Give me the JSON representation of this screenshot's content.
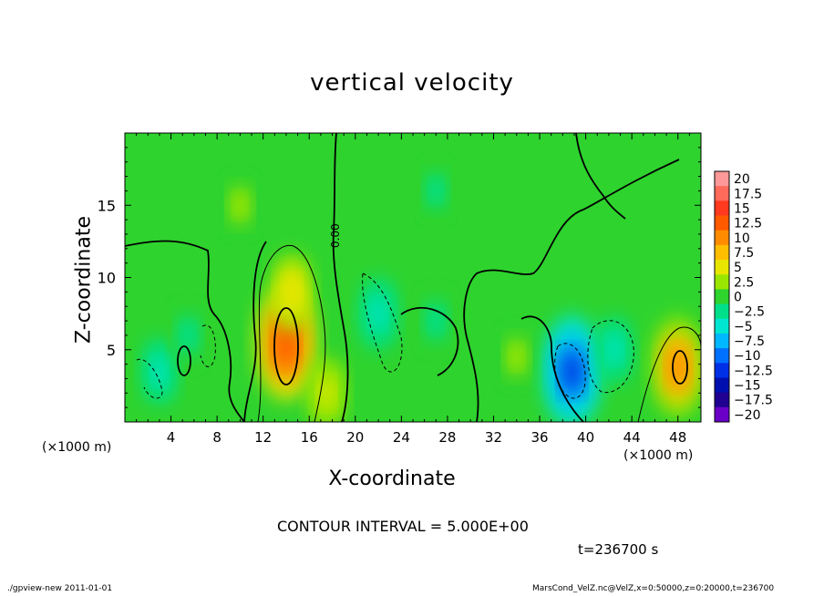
{
  "figure": {
    "title": "vertical velocity",
    "contour_info": "CONTOUR INTERVAL = 5.000E+00",
    "time_label": "t=236700 s",
    "footer_left": "./gpview-new  2011-01-01",
    "footer_right": "MarsCond_VelZ.nc@VelZ,x=0:50000,z=0:20000,t=236700",
    "x_unit_left": "(×1000 m)",
    "x_unit_right": "(×1000 m)",
    "zero_contour_label": "0.00"
  },
  "chart_data": {
    "type": "heatmap",
    "title": "vertical velocity",
    "xlabel": "X-coordinate",
    "ylabel": "Z-coordinate",
    "x_unit": "(×1000 m)",
    "xlim": [
      0,
      50
    ],
    "ylim": [
      0,
      20
    ],
    "x_ticks": [
      4,
      8,
      12,
      16,
      20,
      24,
      28,
      32,
      36,
      40,
      44,
      48
    ],
    "y_ticks": [
      5,
      10,
      15
    ],
    "contour_interval": 5,
    "colorbar": {
      "levels": [
        "20",
        "17.5",
        "15",
        "12.5",
        "10",
        "7.5",
        "5",
        "2.5",
        "0",
        "−2.5",
        "−5",
        "−7.5",
        "−10",
        "−12.5",
        "−15",
        "−17.5",
        "−20"
      ],
      "colors": [
        "#ff9999",
        "#ff6a5a",
        "#ff3a1f",
        "#ff5a00",
        "#ff8c00",
        "#ffbf00",
        "#e8e600",
        "#9be600",
        "#2ed32e",
        "#00e08a",
        "#00e6d2",
        "#00b8ff",
        "#0070ff",
        "#0030e6",
        "#0010b0",
        "#200090",
        "#6a00c8"
      ]
    },
    "features": [
      {
        "x": 14.0,
        "z": 5.5,
        "value": 12.5
      },
      {
        "x": 14.5,
        "z": 9.0,
        "value": 6.0
      },
      {
        "x": 48.0,
        "z": 3.8,
        "value": 10.0
      },
      {
        "x": 38.8,
        "z": 3.5,
        "value": -12.0
      },
      {
        "x": 42.5,
        "z": 5.0,
        "value": -4.0
      },
      {
        "x": 22.0,
        "z": 7.5,
        "value": -5.0
      },
      {
        "x": 27.0,
        "z": 7.0,
        "value": -3.0
      },
      {
        "x": 3.0,
        "z": 3.5,
        "value": -4.0
      },
      {
        "x": 5.5,
        "z": 6.0,
        "value": -3.0
      },
      {
        "x": 17.5,
        "z": 2.0,
        "value": 5.0
      },
      {
        "x": 27.0,
        "z": 16.0,
        "value": -2.0
      },
      {
        "x": 10.0,
        "z": 15.0,
        "value": 2.5
      },
      {
        "x": 34.0,
        "z": 4.5,
        "value": 2.5
      }
    ]
  }
}
